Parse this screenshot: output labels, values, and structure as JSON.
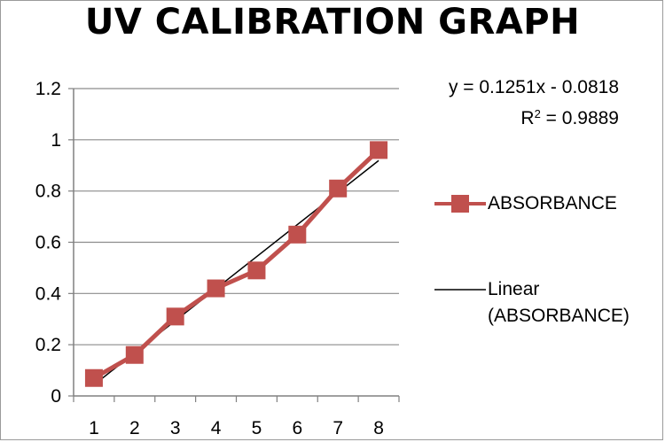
{
  "chart_data": {
    "type": "line",
    "title": "UV CALIBRATION GRAPH",
    "xlabel": "",
    "ylabel": "",
    "categories": [
      "1",
      "2",
      "3",
      "4",
      "5",
      "6",
      "7",
      "8"
    ],
    "ylim": [
      0,
      1.2
    ],
    "yticks": [
      "0",
      "0.2",
      "0.4",
      "0.6",
      "0.8",
      "1",
      "1.2"
    ],
    "grid": true,
    "legend_position": "right",
    "series": [
      {
        "name": "ABSORBANCE",
        "values": [
          0.07,
          0.16,
          0.31,
          0.42,
          0.49,
          0.63,
          0.81,
          0.96
        ],
        "color": "#c0504d",
        "marker": "square"
      }
    ],
    "trendline": {
      "name": "Linear (ABSORBANCE)",
      "color": "#000000",
      "slope": 0.1251,
      "intercept": -0.0818,
      "equation": "y = 0.1251x - 0.0818",
      "r2_label": "R",
      "r2_value": " = 0.9889"
    }
  }
}
